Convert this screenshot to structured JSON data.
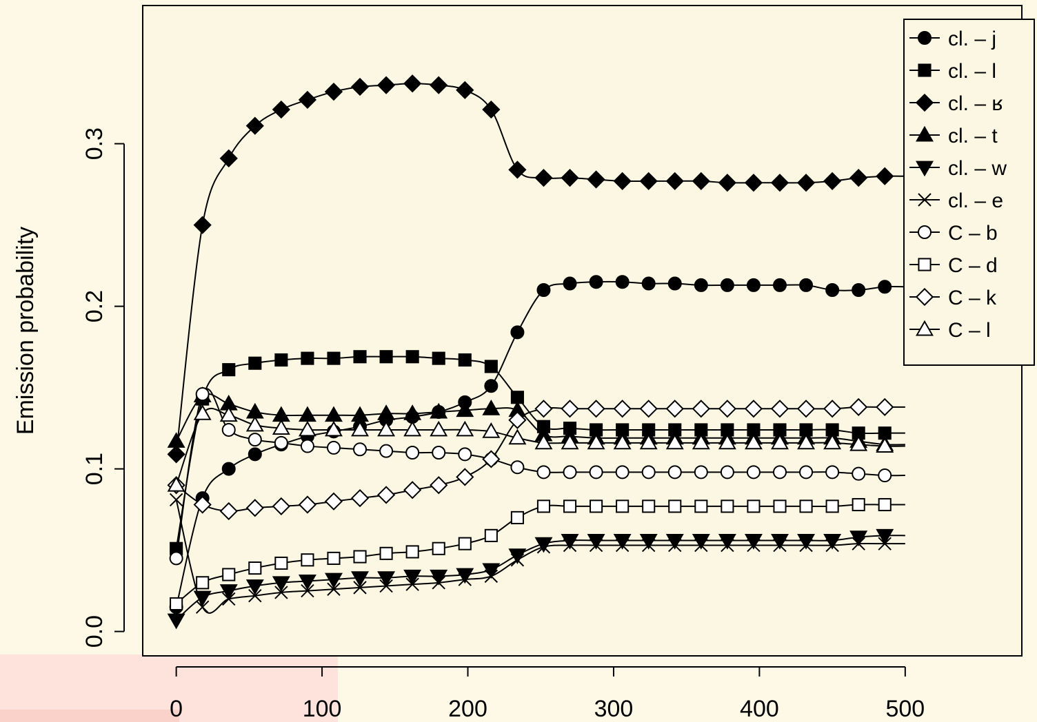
{
  "chart_data": {
    "type": "line",
    "ylabel": "Emission probability",
    "xlabel": "",
    "xlim": [
      -23,
      580
    ],
    "ylim": [
      -0.015,
      0.385
    ],
    "x_ticks": [
      0,
      100,
      200,
      300,
      400,
      500
    ],
    "x_tick_labels": [
      "0",
      "100",
      "200",
      "300",
      "400",
      "500"
    ],
    "y_ticks": [
      0.0,
      0.1,
      0.2,
      0.3
    ],
    "y_tick_labels": [
      "0.0",
      "0.1",
      "0.2",
      "0.3"
    ],
    "legend_position": "top-right",
    "grid": false,
    "x": [
      0,
      18,
      36,
      54,
      72,
      90,
      108,
      126,
      144,
      162,
      180,
      198,
      216,
      234,
      252,
      270,
      288,
      306,
      324,
      342,
      360,
      378,
      396,
      414,
      432,
      450,
      468,
      486
    ],
    "series": [
      {
        "name": "cl. – j",
        "marker": "circle-filled",
        "values": [
          0.015,
          0.082,
          0.1,
          0.109,
          0.115,
          0.12,
          0.123,
          0.126,
          0.13,
          0.132,
          0.135,
          0.141,
          0.151,
          0.184,
          0.21,
          0.214,
          0.215,
          0.215,
          0.214,
          0.214,
          0.213,
          0.213,
          0.213,
          0.213,
          0.213,
          0.21,
          0.21,
          0.212
        ]
      },
      {
        "name": "cl. – l",
        "marker": "square-filled",
        "values": [
          0.051,
          0.143,
          0.161,
          0.165,
          0.167,
          0.168,
          0.168,
          0.169,
          0.169,
          0.169,
          0.168,
          0.167,
          0.163,
          0.144,
          0.126,
          0.125,
          0.124,
          0.124,
          0.124,
          0.124,
          0.124,
          0.124,
          0.124,
          0.124,
          0.124,
          0.124,
          0.122,
          0.122
        ]
      },
      {
        "name": "cl. – ʁ",
        "marker": "diamond-filled",
        "values": [
          0.109,
          0.25,
          0.291,
          0.311,
          0.321,
          0.327,
          0.332,
          0.335,
          0.336,
          0.337,
          0.336,
          0.333,
          0.321,
          0.284,
          0.279,
          0.279,
          0.278,
          0.277,
          0.277,
          0.277,
          0.277,
          0.276,
          0.276,
          0.276,
          0.276,
          0.277,
          0.279,
          0.28
        ]
      },
      {
        "name": "cl. – t",
        "marker": "triangle-up-filled",
        "values": [
          0.117,
          0.145,
          0.14,
          0.135,
          0.133,
          0.133,
          0.133,
          0.133,
          0.134,
          0.134,
          0.135,
          0.136,
          0.137,
          0.136,
          0.121,
          0.12,
          0.119,
          0.119,
          0.119,
          0.119,
          0.119,
          0.119,
          0.119,
          0.119,
          0.119,
          0.119,
          0.117,
          0.115
        ]
      },
      {
        "name": "cl. – w",
        "marker": "triangle-down-filled",
        "values": [
          0.007,
          0.021,
          0.025,
          0.028,
          0.03,
          0.031,
          0.032,
          0.033,
          0.033,
          0.034,
          0.034,
          0.035,
          0.038,
          0.047,
          0.054,
          0.056,
          0.056,
          0.056,
          0.056,
          0.056,
          0.056,
          0.056,
          0.056,
          0.056,
          0.056,
          0.056,
          0.058,
          0.059
        ]
      },
      {
        "name": "cl. – e",
        "marker": "x",
        "values": [
          0.081,
          0.015,
          0.02,
          0.022,
          0.024,
          0.025,
          0.026,
          0.027,
          0.028,
          0.029,
          0.03,
          0.032,
          0.034,
          0.044,
          0.052,
          0.053,
          0.053,
          0.053,
          0.053,
          0.053,
          0.053,
          0.053,
          0.053,
          0.053,
          0.053,
          0.053,
          0.054,
          0.054
        ]
      },
      {
        "name": "C – b",
        "marker": "circle-open",
        "values": [
          0.045,
          0.146,
          0.124,
          0.118,
          0.116,
          0.114,
          0.113,
          0.112,
          0.111,
          0.11,
          0.11,
          0.109,
          0.106,
          0.101,
          0.098,
          0.098,
          0.098,
          0.098,
          0.098,
          0.098,
          0.098,
          0.098,
          0.098,
          0.098,
          0.098,
          0.098,
          0.097,
          0.096
        ]
      },
      {
        "name": "C – d",
        "marker": "square-open",
        "values": [
          0.017,
          0.03,
          0.035,
          0.039,
          0.042,
          0.044,
          0.045,
          0.046,
          0.048,
          0.049,
          0.051,
          0.054,
          0.059,
          0.07,
          0.077,
          0.077,
          0.077,
          0.077,
          0.077,
          0.077,
          0.077,
          0.077,
          0.077,
          0.077,
          0.077,
          0.077,
          0.078,
          0.078
        ]
      },
      {
        "name": "C – k",
        "marker": "diamond-open",
        "values": [
          0.09,
          0.078,
          0.074,
          0.076,
          0.077,
          0.078,
          0.08,
          0.082,
          0.084,
          0.087,
          0.09,
          0.095,
          0.106,
          0.13,
          0.137,
          0.137,
          0.137,
          0.137,
          0.137,
          0.137,
          0.137,
          0.137,
          0.137,
          0.137,
          0.137,
          0.137,
          0.138,
          0.138
        ]
      },
      {
        "name": "C – l",
        "marker": "triangle-up-open",
        "values": [
          0.09,
          0.134,
          0.133,
          0.127,
          0.125,
          0.124,
          0.124,
          0.124,
          0.124,
          0.124,
          0.124,
          0.124,
          0.123,
          0.119,
          0.116,
          0.116,
          0.116,
          0.116,
          0.116,
          0.116,
          0.116,
          0.116,
          0.116,
          0.116,
          0.116,
          0.116,
          0.115,
          0.114
        ]
      }
    ]
  }
}
